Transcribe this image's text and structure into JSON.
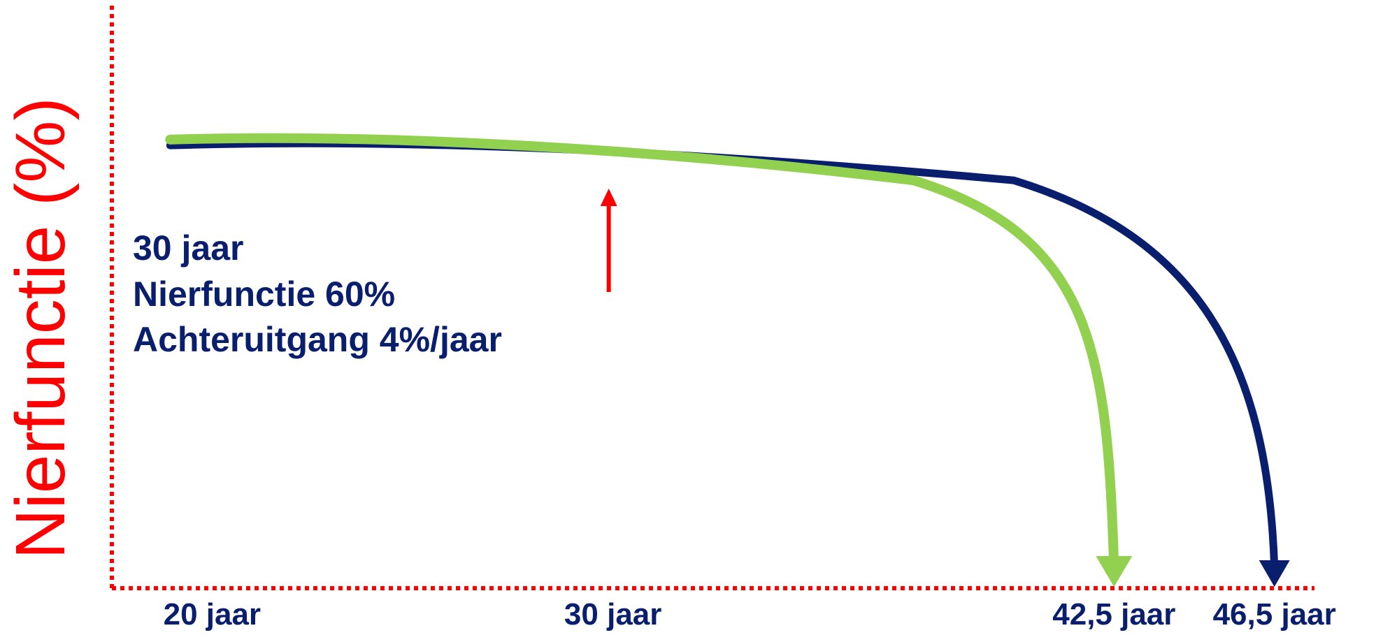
{
  "chart_data": {
    "type": "line",
    "title": "",
    "ylabel": "Nierfunctie (%)",
    "xlabel": "",
    "x_ticks": [
      {
        "value": 20,
        "label": "20 jaar"
      },
      {
        "value": 30,
        "label": "30 jaar"
      },
      {
        "value": 42.5,
        "label": "42,5 jaar"
      },
      {
        "value": 46.5,
        "label": "46,5 jaar"
      }
    ],
    "xlim": [
      17.5,
      47.5
    ],
    "ylim": [
      0,
      100
    ],
    "series": [
      {
        "color": "#0a1e6e",
        "x": [
          20,
          30,
          40,
          46.5
        ],
        "y": [
          76,
          76,
          70,
          0
        ]
      },
      {
        "color": "#92d050",
        "x": [
          20,
          30,
          37.5,
          42.5
        ],
        "y": [
          77,
          76,
          70,
          0
        ]
      }
    ],
    "annotation_lines": [
      "30 jaar",
      "Nierfunctie 60%",
      "Achteruitgang 4%/jaar"
    ],
    "marker_arrow": {
      "x": 30,
      "color": "#ff0000"
    },
    "axis_color": "#ff0000",
    "grid": false
  }
}
